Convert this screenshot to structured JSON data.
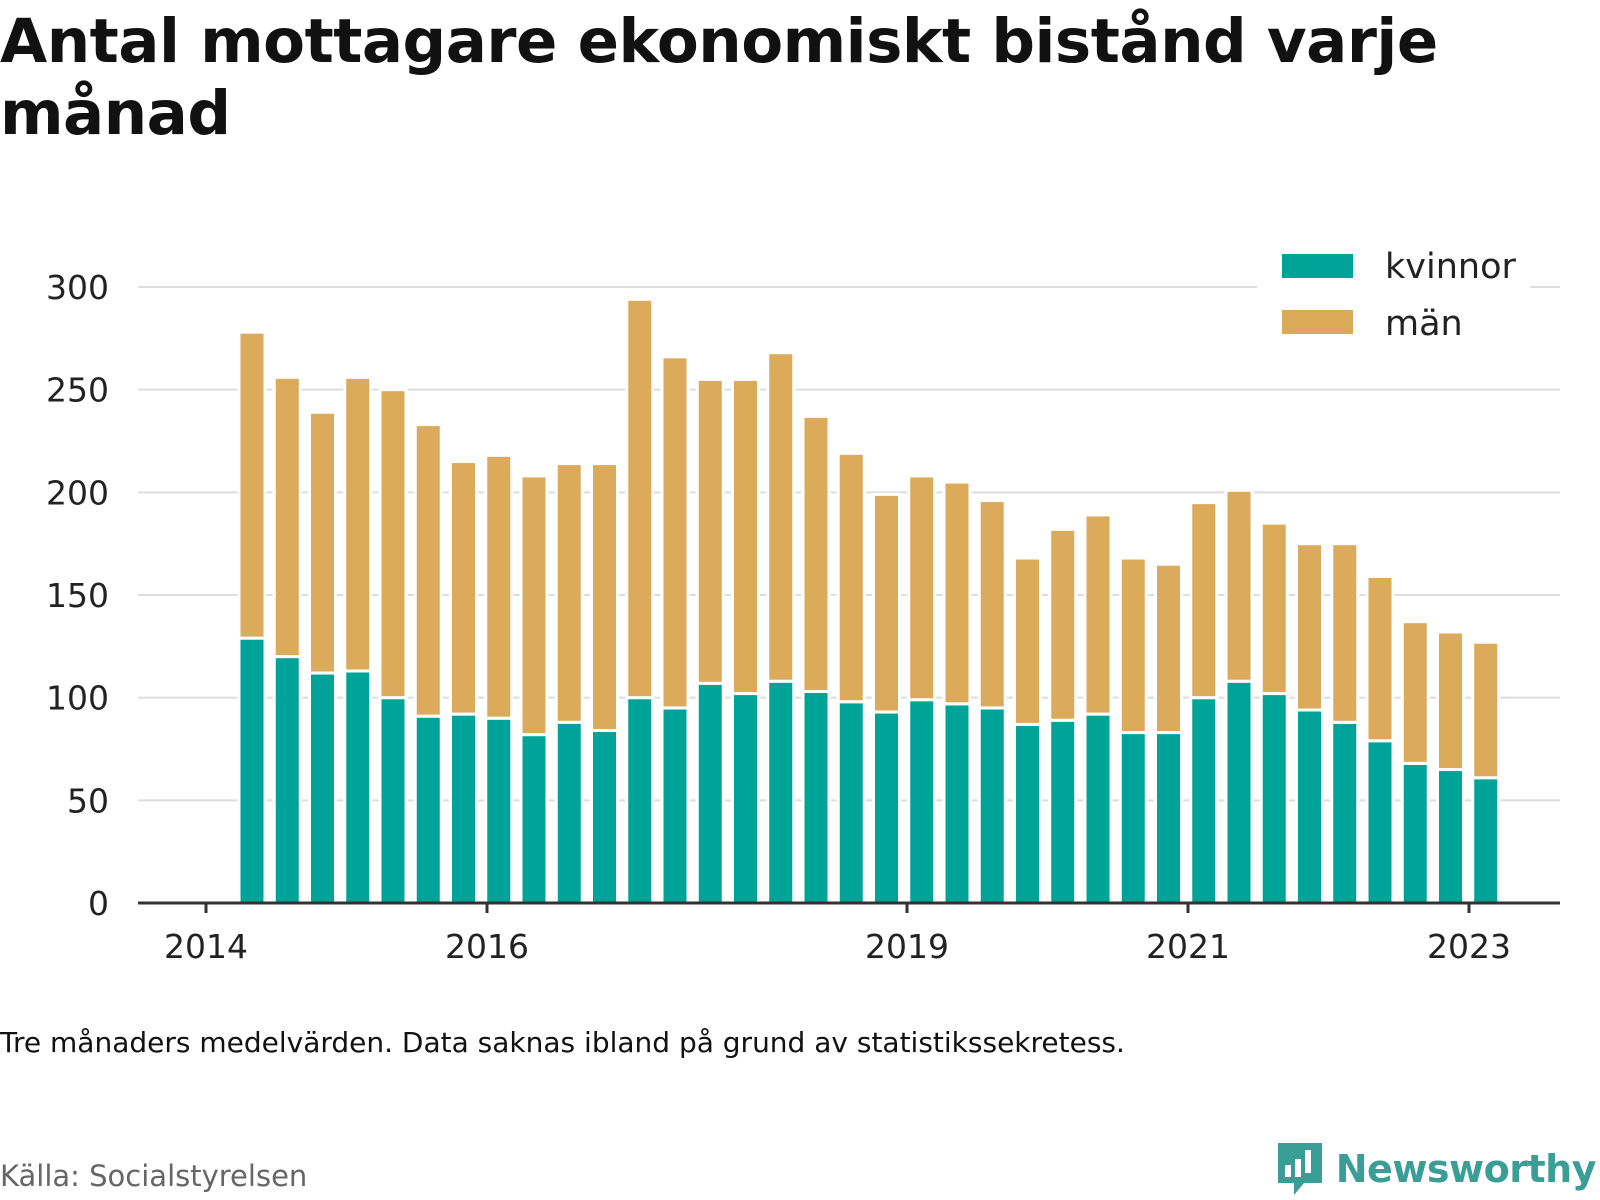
{
  "title": "Antal mottagare ekonomiskt bistånd varje månad",
  "note": "Tre månaders medelvärden. Data saknas ibland på grund av statistikssekretess.",
  "source": "Källa: Socialstyrelsen",
  "brand": {
    "name": "Newsworthy",
    "icon": "bar-chart-speech-bubble-icon",
    "color": "#3a9e96"
  },
  "colors": {
    "kvinnor": "#00a398",
    "man": "#dbab5b",
    "grid": "#dddddd",
    "axis": "#333333"
  },
  "chart_data": {
    "type": "bar",
    "stacked": true,
    "x_tick_labels": [
      "2014",
      "2016",
      "2019",
      "2021",
      "2023"
    ],
    "y_ticks": [
      0,
      50,
      100,
      150,
      200,
      250,
      300
    ],
    "ylim": [
      0,
      300
    ],
    "grid": true,
    "legend_position": "top-right",
    "series": [
      {
        "name": "kvinnor",
        "values": [
          129,
          120,
          112,
          113,
          100,
          91,
          92,
          90,
          82,
          88,
          84,
          100,
          95,
          107,
          102,
          108,
          103,
          98,
          93,
          99,
          97,
          95,
          87,
          89,
          92,
          83,
          83,
          100,
          108,
          102,
          94,
          88,
          79,
          68,
          65,
          61
        ]
      },
      {
        "name": "män",
        "values": [
          149,
          136,
          127,
          143,
          150,
          142,
          123,
          128,
          126,
          126,
          130,
          194,
          171,
          148,
          153,
          160,
          134,
          121,
          106,
          109,
          108,
          101,
          81,
          93,
          97,
          85,
          82,
          95,
          93,
          83,
          81,
          87,
          80,
          69,
          67,
          66
        ]
      }
    ]
  }
}
